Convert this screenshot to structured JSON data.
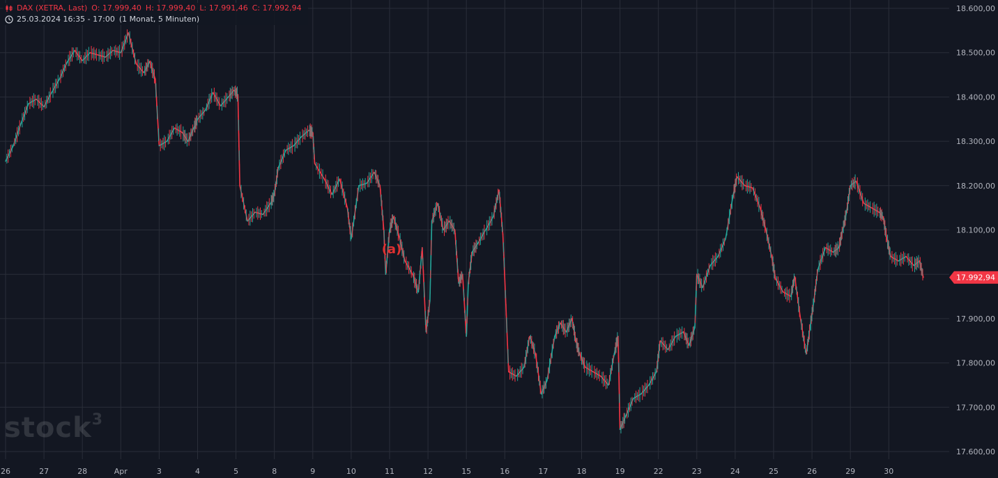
{
  "legend": {
    "symbol": "DAX (XETRA, Last)",
    "open": "O: 17.999,40",
    "high": "H: 17.999,40",
    "low": "L: 17.991,46",
    "close": "C: 17.992,94",
    "time_range": "25.03.2024 16:35 - 17:00",
    "interval": "(1 Monat, 5 Minuten)"
  },
  "watermark": {
    "text": "stock",
    "superscript": "3"
  },
  "colors": {
    "background": "#131722",
    "grid": "#2a2e39",
    "up": "#26a69a",
    "down": "#f23645",
    "axis_text": "#b2b5be",
    "price_tag_bg": "#f23645"
  },
  "annotation": {
    "label": "(a)",
    "color": "#e03030"
  },
  "chart_data": {
    "type": "line",
    "title": "",
    "ylim": [
      17550,
      18620
    ],
    "y_ticks": [
      18600,
      18500,
      18400,
      18300,
      18200,
      18100,
      18000,
      17900,
      17800,
      17700,
      17600
    ],
    "y_tick_labels": [
      "18.600,00",
      "18.500,00",
      "18.400,00",
      "18.300,00",
      "18.200,00",
      "18.100,00",
      "18.000,00",
      "17.900,00",
      "17.800,00",
      "17.700,00",
      "17.600,00"
    ],
    "x_labels": [
      "26",
      "27",
      "28",
      "Apr",
      "3",
      "4",
      "5",
      "8",
      "9",
      "10",
      "11",
      "12",
      "15",
      "16",
      "17",
      "18",
      "19",
      "22",
      "23",
      "24",
      "25",
      "26",
      "29",
      "30"
    ],
    "last_price": 17992.94,
    "last_price_label": "17.992,94",
    "grid": true,
    "series": [
      {
        "values": [
          [
            0,
            18255
          ],
          [
            0.2,
            18290
          ],
          [
            0.4,
            18340
          ],
          [
            0.6,
            18385
          ],
          [
            0.8,
            18395
          ],
          [
            1.0,
            18378
          ],
          [
            1.2,
            18410
          ],
          [
            1.4,
            18440
          ],
          [
            1.6,
            18478
          ],
          [
            1.8,
            18505
          ],
          [
            2.0,
            18482
          ],
          [
            2.2,
            18500
          ],
          [
            2.4,
            18495
          ],
          [
            2.6,
            18490
          ],
          [
            2.8,
            18505
          ],
          [
            3.0,
            18500
          ],
          [
            3.2,
            18545
          ],
          [
            3.4,
            18475
          ],
          [
            3.6,
            18455
          ],
          [
            3.75,
            18480
          ],
          [
            3.9,
            18440
          ],
          [
            4.0,
            18290
          ],
          [
            4.2,
            18300
          ],
          [
            4.4,
            18330
          ],
          [
            4.6,
            18320
          ],
          [
            4.75,
            18300
          ],
          [
            4.9,
            18330
          ],
          [
            5.0,
            18350
          ],
          [
            5.2,
            18370
          ],
          [
            5.4,
            18410
          ],
          [
            5.6,
            18380
          ],
          [
            5.8,
            18400
          ],
          [
            5.95,
            18415
          ],
          [
            6.05,
            18405
          ],
          [
            6.1,
            18200
          ],
          [
            6.3,
            18120
          ],
          [
            6.5,
            18140
          ],
          [
            6.7,
            18135
          ],
          [
            6.9,
            18160
          ],
          [
            7.0,
            18180
          ],
          [
            7.1,
            18240
          ],
          [
            7.3,
            18280
          ],
          [
            7.5,
            18290
          ],
          [
            7.7,
            18310
          ],
          [
            7.9,
            18325
          ],
          [
            8.0,
            18320
          ],
          [
            8.05,
            18250
          ],
          [
            8.3,
            18215
          ],
          [
            8.5,
            18180
          ],
          [
            8.7,
            18215
          ],
          [
            8.9,
            18150
          ],
          [
            9.0,
            18080
          ],
          [
            9.2,
            18200
          ],
          [
            9.4,
            18205
          ],
          [
            9.6,
            18230
          ],
          [
            9.75,
            18200
          ],
          [
            9.85,
            18100
          ],
          [
            9.9,
            18000
          ],
          [
            10.0,
            18100
          ],
          [
            10.1,
            18130
          ],
          [
            10.25,
            18085
          ],
          [
            10.4,
            18030
          ],
          [
            10.6,
            18000
          ],
          [
            10.75,
            17960
          ],
          [
            10.85,
            18060
          ],
          [
            10.95,
            17870
          ],
          [
            11.05,
            17940
          ],
          [
            11.1,
            18120
          ],
          [
            11.25,
            18160
          ],
          [
            11.4,
            18100
          ],
          [
            11.55,
            18120
          ],
          [
            11.7,
            18100
          ],
          [
            11.8,
            17980
          ],
          [
            11.9,
            18000
          ],
          [
            12.0,
            17860
          ],
          [
            12.05,
            17980
          ],
          [
            12.15,
            18050
          ],
          [
            12.3,
            18070
          ],
          [
            12.5,
            18100
          ],
          [
            12.7,
            18130
          ],
          [
            12.85,
            18190
          ],
          [
            12.95,
            18090
          ],
          [
            13.0,
            17990
          ],
          [
            13.1,
            17780
          ],
          [
            13.3,
            17770
          ],
          [
            13.5,
            17790
          ],
          [
            13.65,
            17860
          ],
          [
            13.8,
            17820
          ],
          [
            13.95,
            17730
          ],
          [
            14.1,
            17760
          ],
          [
            14.3,
            17860
          ],
          [
            14.45,
            17890
          ],
          [
            14.6,
            17870
          ],
          [
            14.75,
            17900
          ],
          [
            14.85,
            17850
          ],
          [
            14.95,
            17820
          ],
          [
            15.1,
            17790
          ],
          [
            15.3,
            17780
          ],
          [
            15.5,
            17770
          ],
          [
            15.7,
            17750
          ],
          [
            15.85,
            17820
          ],
          [
            15.95,
            17860
          ],
          [
            16.0,
            17650
          ],
          [
            16.15,
            17680
          ],
          [
            16.35,
            17720
          ],
          [
            16.55,
            17730
          ],
          [
            16.75,
            17750
          ],
          [
            16.95,
            17780
          ],
          [
            17.05,
            17850
          ],
          [
            17.25,
            17830
          ],
          [
            17.45,
            17860
          ],
          [
            17.65,
            17870
          ],
          [
            17.8,
            17840
          ],
          [
            17.95,
            17880
          ],
          [
            18.0,
            18000
          ],
          [
            18.15,
            17970
          ],
          [
            18.35,
            18020
          ],
          [
            18.55,
            18040
          ],
          [
            18.75,
            18080
          ],
          [
            18.95,
            18180
          ],
          [
            19.05,
            18220
          ],
          [
            19.25,
            18200
          ],
          [
            19.45,
            18195
          ],
          [
            19.65,
            18150
          ],
          [
            19.8,
            18100
          ],
          [
            19.95,
            18040
          ],
          [
            20.05,
            17990
          ],
          [
            20.25,
            17960
          ],
          [
            20.45,
            17950
          ],
          [
            20.55,
            17995
          ],
          [
            20.7,
            17900
          ],
          [
            20.85,
            17820
          ],
          [
            20.95,
            17880
          ],
          [
            21.05,
            17940
          ],
          [
            21.15,
            18010
          ],
          [
            21.35,
            18060
          ],
          [
            21.55,
            18050
          ],
          [
            21.7,
            18060
          ],
          [
            21.8,
            18100
          ],
          [
            21.9,
            18140
          ],
          [
            22.0,
            18200
          ],
          [
            22.15,
            18210
          ],
          [
            22.35,
            18160
          ],
          [
            22.55,
            18150
          ],
          [
            22.75,
            18140
          ],
          [
            22.85,
            18130
          ],
          [
            22.95,
            18080
          ],
          [
            23.05,
            18040
          ],
          [
            23.25,
            18030
          ],
          [
            23.45,
            18040
          ],
          [
            23.65,
            18020
          ],
          [
            23.8,
            18030
          ],
          [
            23.9,
            17992.94
          ]
        ]
      }
    ]
  }
}
